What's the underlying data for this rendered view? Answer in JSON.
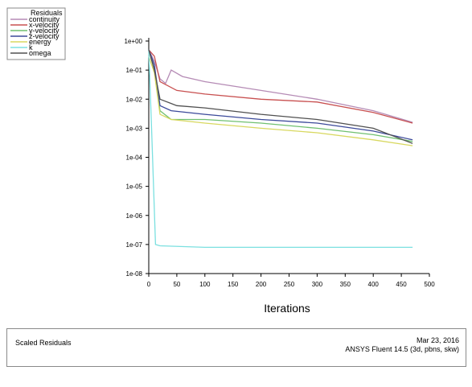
{
  "chart_data": {
    "type": "line",
    "title": "",
    "xlabel": "Iterations",
    "ylabel": "",
    "xlim": [
      0,
      500
    ],
    "ylim_log10": [
      -8,
      0
    ],
    "y_scale": "log",
    "grid": false,
    "legend_placement": "top-left",
    "legend_title": "Residuals",
    "x_ticks": [
      "0",
      "50",
      "100",
      "150",
      "200",
      "250",
      "300",
      "350",
      "400",
      "450",
      "500"
    ],
    "y_ticks": [
      "1e+00",
      "1e-01",
      "1e-02",
      "1e-03",
      "1e-04",
      "1e-05",
      "1e-06",
      "1e-07",
      "1e-08"
    ],
    "series": [
      {
        "name": "continuity",
        "color": "#b58bb5",
        "points": [
          [
            0,
            0.5
          ],
          [
            10,
            0.2
          ],
          [
            20,
            0.05
          ],
          [
            30,
            0.035
          ],
          [
            40,
            0.1
          ],
          [
            60,
            0.06
          ],
          [
            100,
            0.04
          ],
          [
            200,
            0.02
          ],
          [
            300,
            0.01
          ],
          [
            400,
            0.004
          ],
          [
            470,
            0.0016
          ]
        ]
      },
      {
        "name": "x-velocity",
        "color": "#c85050",
        "points": [
          [
            0,
            0.5
          ],
          [
            10,
            0.3
          ],
          [
            20,
            0.04
          ],
          [
            50,
            0.02
          ],
          [
            100,
            0.015
          ],
          [
            200,
            0.01
          ],
          [
            300,
            0.008
          ],
          [
            400,
            0.0035
          ],
          [
            470,
            0.0015
          ]
        ]
      },
      {
        "name": "y-velocity",
        "color": "#70c070",
        "points": [
          [
            0,
            0.5
          ],
          [
            10,
            0.1
          ],
          [
            20,
            0.004
          ],
          [
            40,
            0.002
          ],
          [
            100,
            0.002
          ],
          [
            200,
            0.0015
          ],
          [
            300,
            0.001
          ],
          [
            400,
            0.0006
          ],
          [
            470,
            0.00035
          ]
        ]
      },
      {
        "name": "z-velocity",
        "color": "#3c4a9a",
        "points": [
          [
            0,
            0.5
          ],
          [
            10,
            0.15
          ],
          [
            20,
            0.006
          ],
          [
            40,
            0.004
          ],
          [
            100,
            0.003
          ],
          [
            200,
            0.002
          ],
          [
            300,
            0.0015
          ],
          [
            400,
            0.0008
          ],
          [
            470,
            0.0004
          ]
        ]
      },
      {
        "name": "energy",
        "color": "#d8d860",
        "points": [
          [
            0,
            0.3
          ],
          [
            10,
            0.08
          ],
          [
            20,
            0.003
          ],
          [
            40,
            0.002
          ],
          [
            100,
            0.0015
          ],
          [
            200,
            0.001
          ],
          [
            300,
            0.0007
          ],
          [
            400,
            0.0004
          ],
          [
            470,
            0.00025
          ]
        ]
      },
      {
        "name": "k",
        "color": "#7be0e0",
        "points": [
          [
            0,
            0.5
          ],
          [
            5,
            0.001
          ],
          [
            12,
            1e-07
          ],
          [
            20,
            9e-08
          ],
          [
            100,
            8e-08
          ],
          [
            300,
            8e-08
          ],
          [
            470,
            8e-08
          ]
        ]
      },
      {
        "name": "omega",
        "color": "#505050",
        "points": [
          [
            0,
            0.5
          ],
          [
            10,
            0.1
          ],
          [
            20,
            0.01
          ],
          [
            50,
            0.006
          ],
          [
            100,
            0.005
          ],
          [
            200,
            0.003
          ],
          [
            300,
            0.002
          ],
          [
            400,
            0.001
          ],
          [
            470,
            0.0003
          ]
        ]
      }
    ]
  },
  "footer": {
    "left": "Scaled Residuals",
    "date": "Mar 23, 2016",
    "software": "ANSYS Fluent 14.5 (3d, pbns, skw)"
  }
}
